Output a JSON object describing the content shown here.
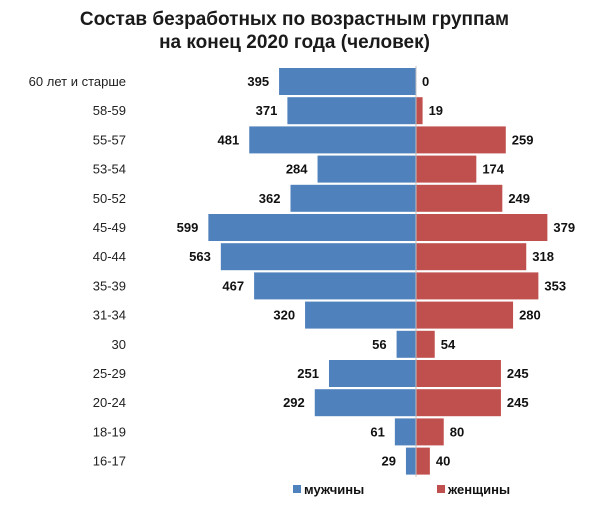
{
  "chart_data": {
    "type": "bar",
    "orientation": "horizontal-diverging",
    "title_lines": [
      "Состав безработных  по возрастным группам",
      "на конец 2020 года (человек)"
    ],
    "categories": [
      "60 лет и старше",
      "58-59",
      "55-57",
      "53-54",
      "50-52",
      "45-49",
      "40-44",
      "35-39",
      "31-34",
      "30",
      "25-29",
      "20-24",
      "18-19",
      "16-17"
    ],
    "series": [
      {
        "name": "мужчины",
        "color": "#4f81bd",
        "values": [
          395,
          371,
          481,
          284,
          362,
          599,
          563,
          467,
          320,
          56,
          251,
          292,
          61,
          29
        ]
      },
      {
        "name": "женщины",
        "color": "#c0504d",
        "values": [
          0,
          19,
          259,
          174,
          249,
          379,
          318,
          353,
          280,
          54,
          245,
          245,
          80,
          40
        ]
      }
    ],
    "legend_position": "bottom",
    "grid": false
  }
}
